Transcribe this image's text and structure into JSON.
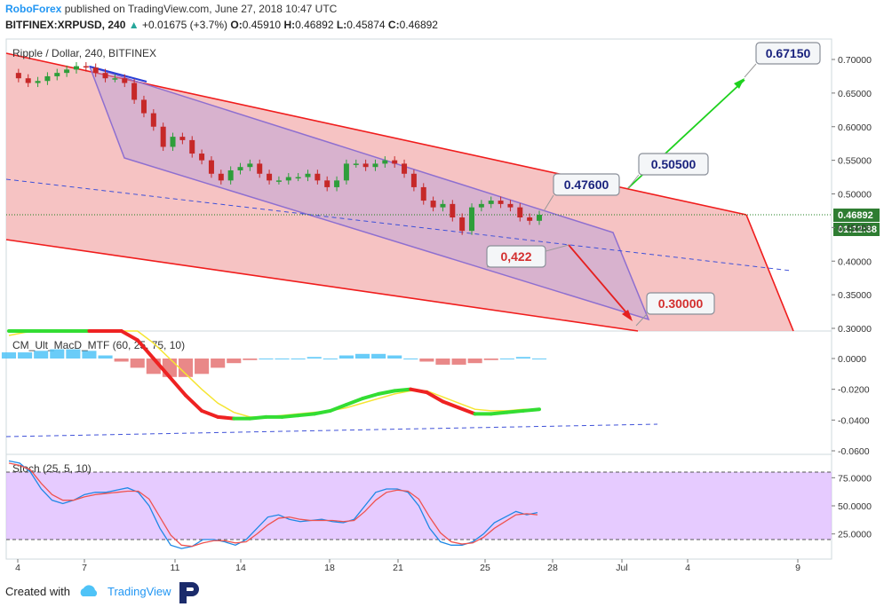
{
  "header": {
    "brand": "RoboForex",
    "published": "published on TradingView.com, June 27, 2018 10:47 UTC",
    "symbol": "BITFINEX:XRPUSD, 240",
    "change": "+0.01675 (+3.7%)",
    "open_label": "O:",
    "open": "0.45910",
    "high_label": "H:",
    "high": "0.46892",
    "low_label": "L:",
    "low": "0.45874",
    "close_label": "C:",
    "close": "0.46892",
    "up_arrow": "▲"
  },
  "footer": {
    "created_with": "Created with",
    "tradingview": "TradingView"
  },
  "chart_data": [
    {
      "type": "candlestick",
      "title": "Ripple / Dollar, 240, BITFINEX",
      "ylim": [
        0.3,
        0.72
      ],
      "y_ticks": [
        "0.70000",
        "0.65000",
        "0.60000",
        "0.55000",
        "0.50000",
        "0.45000",
        "0.40000",
        "0.35000",
        "0.30000"
      ],
      "x_ticks": [
        "4",
        "7",
        "11",
        "14",
        "18",
        "21",
        "25",
        "28",
        "Jul",
        "4",
        "9"
      ],
      "last_price": "0.46892",
      "countdown": "01:12:38",
      "close_path": [
        0.68,
        0.672,
        0.665,
        0.668,
        0.675,
        0.68,
        0.685,
        0.69,
        0.688,
        0.68,
        0.672,
        0.672,
        0.665,
        0.64,
        0.62,
        0.6,
        0.57,
        0.585,
        0.58,
        0.56,
        0.55,
        0.53,
        0.52,
        0.535,
        0.54,
        0.545,
        0.53,
        0.52,
        0.52,
        0.525,
        0.525,
        0.53,
        0.52,
        0.51,
        0.52,
        0.545,
        0.545,
        0.54,
        0.545,
        0.55,
        0.545,
        0.53,
        0.51,
        0.49,
        0.48,
        0.485,
        0.465,
        0.445,
        0.48,
        0.485,
        0.49,
        0.485,
        0.48,
        0.465,
        0.46,
        0.469
      ],
      "annotations": [
        {
          "label": "0.67150",
          "value": 0.6715,
          "color": "#1a237e"
        },
        {
          "label": "0.50500",
          "value": 0.505,
          "color": "#1a237e"
        },
        {
          "label": "0.47600",
          "value": 0.476,
          "color": "#1a237e"
        },
        {
          "label": "0,422",
          "value": 0.422,
          "color": "#d32f2f"
        },
        {
          "label": "0.30000",
          "value": 0.3,
          "color": "#d32f2f"
        }
      ]
    },
    {
      "type": "line",
      "title": "CM_Ult_MacD_MTF (60, 25, 75, 10)",
      "ylim": [
        -0.06,
        0.012
      ],
      "y_ticks": [
        "0.0000",
        "-0.0200",
        "-0.0400",
        "-0.0600"
      ],
      "macd": [
        0.02,
        0.022,
        0.025,
        0.028,
        0.03,
        0.031,
        0.028,
        0.022,
        0.012,
        0.0,
        -0.012,
        -0.024,
        -0.034,
        -0.038,
        -0.039,
        -0.039,
        -0.038,
        -0.038,
        -0.037,
        -0.036,
        -0.034,
        -0.03,
        -0.026,
        -0.023,
        -0.021,
        -0.02,
        -0.022,
        -0.028,
        -0.032,
        -0.036,
        -0.036,
        -0.035,
        -0.034,
        -0.033
      ],
      "signal": [
        0.015,
        0.017,
        0.02,
        0.022,
        0.024,
        0.026,
        0.026,
        0.024,
        0.018,
        0.01,
        0.0,
        -0.01,
        -0.02,
        -0.029,
        -0.035,
        -0.038,
        -0.038,
        -0.037,
        -0.036,
        -0.035,
        -0.034,
        -0.032,
        -0.029,
        -0.026,
        -0.023,
        -0.021,
        -0.021,
        -0.025,
        -0.029,
        -0.033,
        -0.034,
        -0.034,
        -0.033,
        -0.033
      ],
      "histogram": [
        0.004,
        0.004,
        0.005,
        0.006,
        0.006,
        0.005,
        0.002,
        -0.002,
        -0.006,
        -0.01,
        -0.012,
        -0.012,
        -0.01,
        -0.006,
        -0.003,
        -0.001,
        0.0,
        0.0,
        0.0,
        0.001,
        0.0,
        0.002,
        0.003,
        0.003,
        0.002,
        0.0,
        -0.002,
        -0.004,
        -0.004,
        -0.003,
        -0.001,
        0.0,
        0.001,
        0.0
      ]
    },
    {
      "type": "line",
      "title": "Stoch (25, 5, 10)",
      "ylim": [
        10,
        90
      ],
      "y_ticks": [
        "75.0000",
        "50.0000",
        "25.0000"
      ],
      "levels": [
        80,
        20
      ],
      "k": [
        90,
        88,
        80,
        65,
        55,
        52,
        55,
        60,
        62,
        62,
        64,
        66,
        62,
        50,
        30,
        15,
        12,
        14,
        20,
        20,
        18,
        15,
        20,
        30,
        40,
        42,
        38,
        36,
        37,
        38,
        36,
        35,
        38,
        50,
        62,
        65,
        65,
        62,
        50,
        30,
        18,
        15,
        15,
        18,
        25,
        35,
        40,
        45,
        42,
        44
      ],
      "d": [
        88,
        86,
        82,
        70,
        60,
        55,
        55,
        58,
        60,
        61,
        62,
        63,
        63,
        56,
        40,
        24,
        15,
        14,
        17,
        19,
        19,
        17,
        18,
        25,
        33,
        39,
        40,
        38,
        37,
        37,
        37,
        36,
        37,
        45,
        55,
        62,
        64,
        63,
        56,
        40,
        26,
        18,
        16,
        17,
        22,
        30,
        36,
        42,
        43,
        42
      ]
    }
  ]
}
